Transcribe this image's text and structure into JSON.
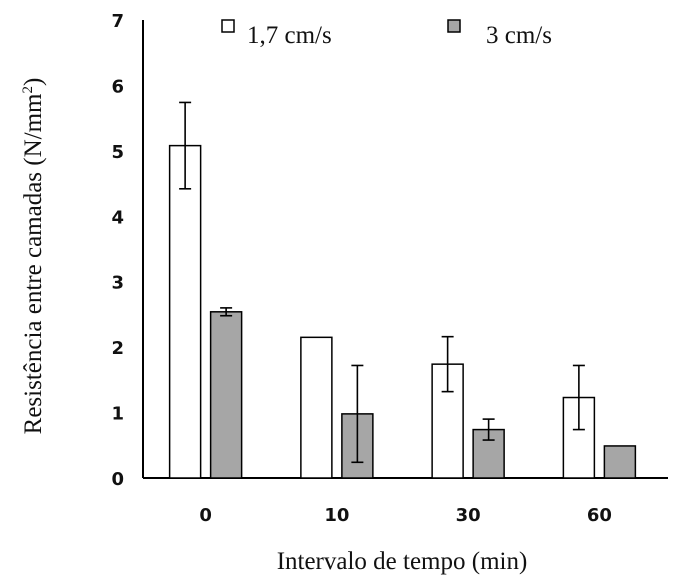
{
  "chart_data": {
    "type": "bar",
    "categories": [
      "0",
      "10",
      "30",
      "60"
    ],
    "series": [
      {
        "name": "1,7 cm/s",
        "color": "#ffffff",
        "values": [
          5.08,
          2.15,
          1.74,
          1.23
        ],
        "error": [
          0.66,
          null,
          0.42,
          0.49
        ]
      },
      {
        "name": "3 cm/s",
        "color": "#a6a6a6",
        "values": [
          2.54,
          0.98,
          0.74,
          0.49
        ],
        "error": [
          0.06,
          0.74,
          0.16,
          null
        ]
      }
    ],
    "yticks": [
      "0",
      "1",
      "2",
      "3",
      "4",
      "5",
      "6",
      "7"
    ],
    "ylim": [
      0,
      7
    ],
    "xlabel": "Intervalo de tempo (min)",
    "ylabel": "Resistência entre camadas (N/mm",
    "ylabel_superscript": "2",
    "ylabel_suffix": ")",
    "legend_position": "top",
    "grid": false
  }
}
